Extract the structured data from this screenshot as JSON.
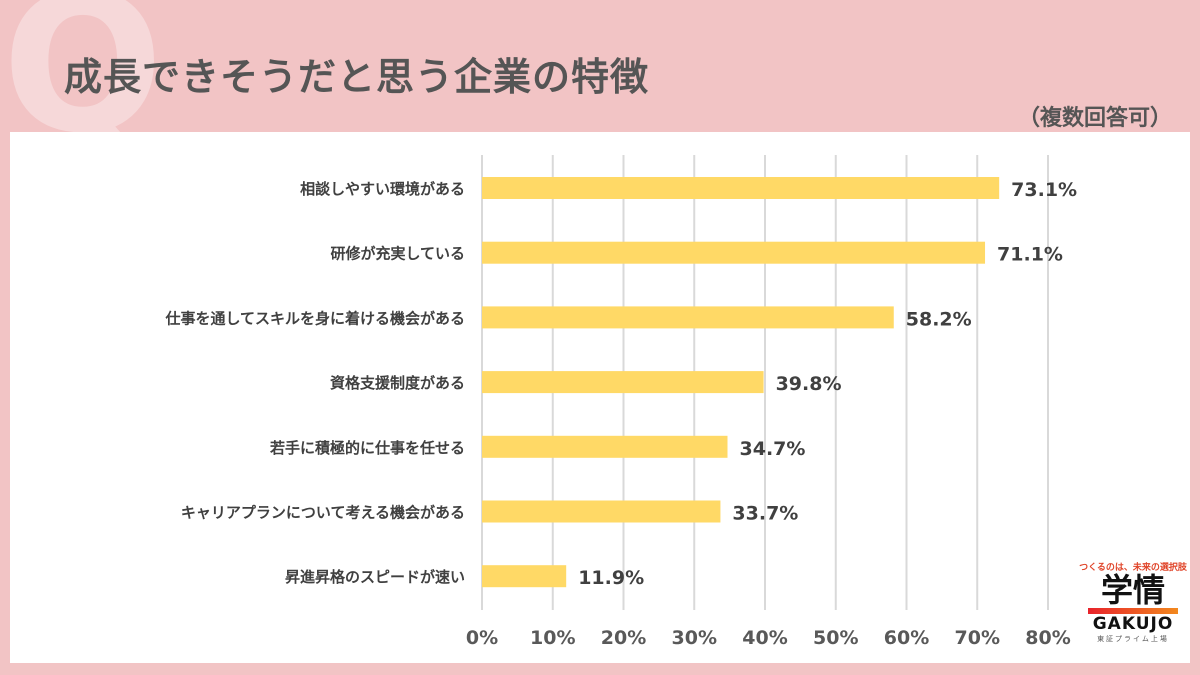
{
  "header": {
    "q_mark": "Q",
    "title": "成長できそうだと思う企業の特徴",
    "note": "（複数回答可）"
  },
  "logo": {
    "tagline": "つくるのは、未来の選択肢",
    "kanji": "学情",
    "name": "GAKUJO",
    "sub": "東証プライム上場"
  },
  "chart_data": {
    "type": "bar",
    "orientation": "horizontal",
    "categories": [
      "相談しやすい環境がある",
      "研修が充実している",
      "仕事を通してスキルを身に着ける機会がある",
      "資格支援制度がある",
      "若手に積極的に仕事を任せる",
      "キャリアプランについて考える機会がある",
      "昇進昇格のスピードが速い"
    ],
    "values": [
      73.1,
      71.1,
      58.2,
      39.8,
      34.7,
      33.7,
      11.9
    ],
    "value_labels": [
      "73.1%",
      "71.1%",
      "58.2%",
      "39.8%",
      "34.7%",
      "33.7%",
      "11.9%"
    ],
    "xlim": [
      0,
      80
    ],
    "ticks": [
      "0%",
      "10%",
      "20%",
      "30%",
      "40%",
      "50%",
      "60%",
      "70%",
      "80%"
    ],
    "grid": true,
    "bar_color": "#ffd966"
  }
}
